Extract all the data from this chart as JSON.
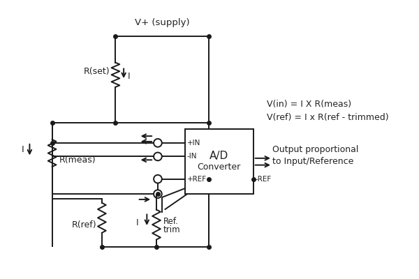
{
  "bg_color": "#ffffff",
  "line_color": "#1a1a1a",
  "text_color": "#222222",
  "annotations": {
    "supply": "V+ (supply)",
    "rset": "R(set)",
    "rmeas": "R(meas)",
    "rref": "R(ref)",
    "I_top": "I",
    "I_bot": "I",
    "I_left": "I",
    "pin_plus_in": "+IN",
    "pin_minus_in": "-IN",
    "pin_plus_ref": "+REF",
    "pin_minus_ref": "-REF",
    "ad_line1": "A/D",
    "ad_line2": "Converter",
    "vin": "V(in) = I X R(meas)",
    "vref": "V(ref) = I x R(ref - trimmed)",
    "output_line1": "Output proportional",
    "output_line2": "to Input/Reference",
    "ref_trim_line1": "Ref.",
    "ref_trim_line2": "trim"
  }
}
